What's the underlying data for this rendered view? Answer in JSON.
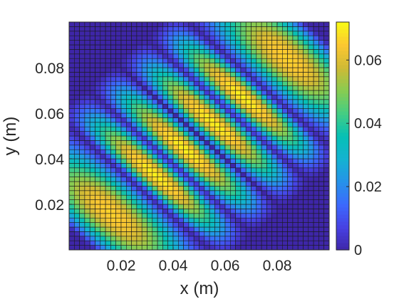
{
  "chart_data": {
    "type": "heatmap",
    "title": "",
    "xlabel": "x (m)",
    "ylabel": "y (m)",
    "xlim": [
      0,
      0.1
    ],
    "ylim": [
      0,
      0.1
    ],
    "grid_size": 50,
    "xticks": [
      0.02,
      0.04,
      0.06,
      0.08
    ],
    "yticks": [
      0.02,
      0.04,
      0.06,
      0.08
    ],
    "xtick_labels": [
      "0.02",
      "0.04",
      "0.06",
      "0.08"
    ],
    "ytick_labels": [
      "0.02",
      "0.04",
      "0.06",
      "0.08"
    ],
    "colorbar": {
      "range": [
        0,
        0.072
      ],
      "ticks": [
        0,
        0.02,
        0.04,
        0.06
      ],
      "tick_labels": [
        "0",
        "0.02",
        "0.04",
        "0.06"
      ],
      "colormap": "parula"
    },
    "field": {
      "description": "two-mode pattern rotated 45 degrees",
      "features": [
        {
          "x": 0.047,
          "y": 0.047,
          "value": 0.072
        },
        {
          "x": 0.057,
          "y": 0.057,
          "value": 0.068
        },
        {
          "x": 0.033,
          "y": 0.033,
          "value": 0.066
        },
        {
          "x": 0.067,
          "y": 0.067,
          "value": 0.064
        }
      ]
    }
  }
}
